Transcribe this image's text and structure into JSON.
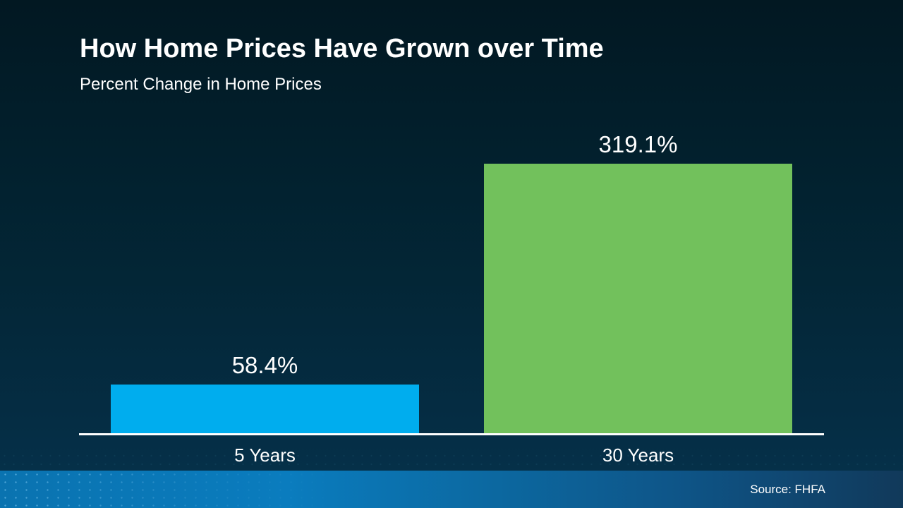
{
  "slide": {
    "title": "How Home Prices Have Grown over Time",
    "subtitle": "Percent Change in Home Prices",
    "source": "Source: FHFA"
  },
  "chart_data": {
    "type": "bar",
    "title": "How Home Prices Have Grown over Time",
    "subtitle": "Percent Change in Home Prices",
    "categories": [
      "5 Years",
      "30 Years"
    ],
    "values": [
      58.4,
      319.1
    ],
    "value_labels": [
      "58.4%",
      "319.1%"
    ],
    "series": [
      {
        "name": "Percent Change in Home Prices",
        "values": [
          58.4,
          319.1
        ]
      }
    ],
    "xlabel": "",
    "ylabel": "",
    "ylim": [
      0,
      350
    ],
    "grid": false,
    "legend": "none",
    "bar_colors": [
      "#00ADEE",
      "#72C15C"
    ],
    "source": "Source: FHFA"
  },
  "colors": {
    "bar_5_years": "#00ADEE",
    "bar_30_years": "#72C15C",
    "axis": "#FFFFFF",
    "text": "#FFFFFF",
    "background_top": "#021822",
    "background_bottom": "#053049",
    "footer_left": "#0A73B0",
    "footer_right": "#11395A"
  }
}
